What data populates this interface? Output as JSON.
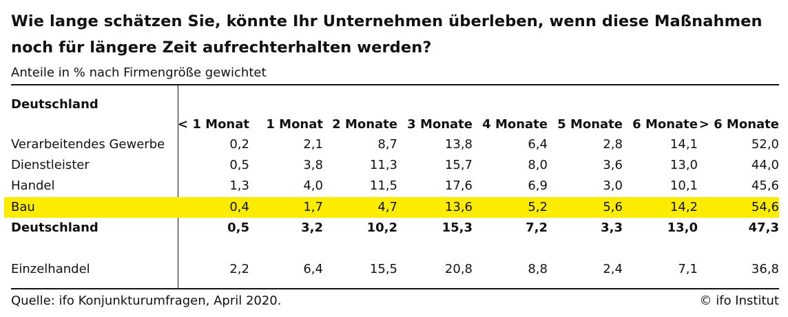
{
  "title": "Wie lange schätzen Sie, könnte Ihr Unternehmen überleben, wenn diese Maßnahmen noch für längere Zeit aufrechterhalten werden?",
  "subtitle": "Anteile in % nach Firmengröße gewichtet",
  "section_label": "Deutschland",
  "columns": [
    "< 1 Monat",
    "1 Monat",
    "2 Monate",
    "3 Monate",
    "4 Monate",
    "5 Monate",
    "6 Monate",
    "> 6 Monate"
  ],
  "rows": [
    {
      "label": "Verarbeitendes Gewerbe",
      "values": [
        "0,2",
        "2,1",
        "8,7",
        "13,8",
        "6,4",
        "2,8",
        "14,1",
        "52,0"
      ]
    },
    {
      "label": "Dienstleister",
      "values": [
        "0,5",
        "3,8",
        "11,3",
        "15,7",
        "8,0",
        "3,6",
        "13,0",
        "44,0"
      ]
    },
    {
      "label": "Handel",
      "values": [
        "1,3",
        "4,0",
        "11,5",
        "17,6",
        "6,9",
        "3,0",
        "10,1",
        "45,6"
      ]
    },
    {
      "label": "Bau",
      "values": [
        "0,4",
        "1,7",
        "4,7",
        "13,6",
        "5,2",
        "5,6",
        "14,2",
        "54,6"
      ],
      "highlighted": true,
      "highlight_color": "#fcec00"
    },
    {
      "label": "Deutschland",
      "values": [
        "0,5",
        "3,2",
        "10,2",
        "15,3",
        "7,2",
        "3,3",
        "13,0",
        "47,3"
      ],
      "bold": true
    },
    {
      "label": "Einzelhandel",
      "values": [
        "2,2",
        "6,4",
        "15,5",
        "20,8",
        "8,8",
        "2,4",
        "7,1",
        "36,8"
      ]
    }
  ],
  "footer": {
    "source": "Quelle: ifo Konjunkturumfragen, April 2020.",
    "credit": "© ifo Institut"
  }
}
